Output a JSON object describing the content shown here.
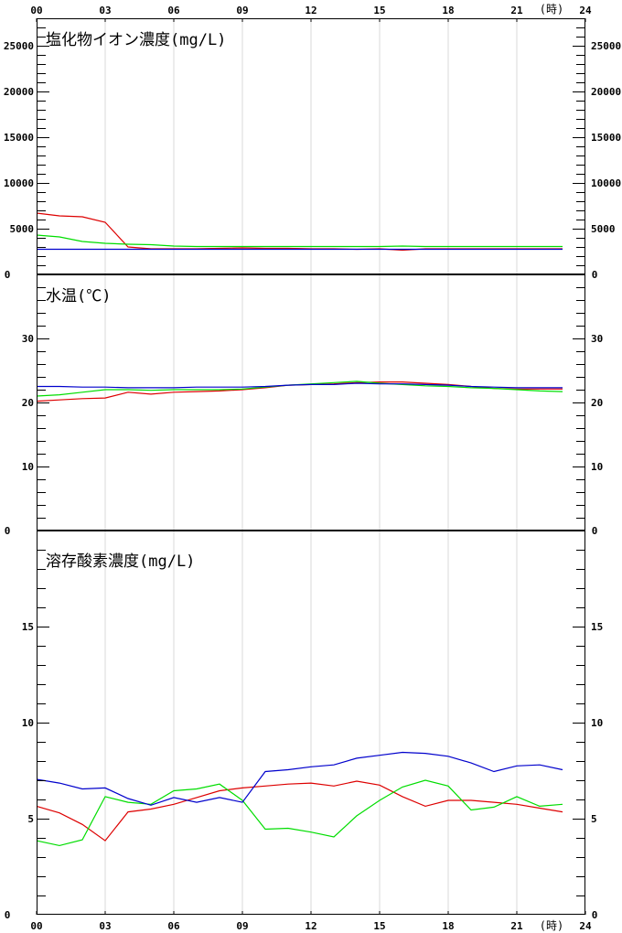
{
  "time_axis": {
    "labels": [
      "00",
      "03",
      "06",
      "09",
      "12",
      "15",
      "18",
      "21",
      "24"
    ],
    "values": [
      0,
      3,
      6,
      9,
      12,
      15,
      18,
      21,
      24
    ],
    "unit": "(時)"
  },
  "chart_data": [
    {
      "type": "line",
      "title": "塩化物イオン濃度(mg/L)",
      "x": [
        0,
        1,
        2,
        3,
        4,
        5,
        6,
        7,
        8,
        9,
        10,
        11,
        12,
        13,
        14,
        15,
        16,
        17,
        18,
        19,
        20,
        21,
        22,
        23
      ],
      "ylim": [
        0,
        28000
      ],
      "yticks": [
        0,
        5000,
        10000,
        15000,
        20000,
        25000
      ],
      "minor_step": 1000,
      "grid": "vertical",
      "series": [
        {
          "color": "#dd0000",
          "values": [
            6700,
            6400,
            6300,
            5700,
            3000,
            2800,
            2800,
            2800,
            2850,
            2900,
            2850,
            2850,
            2800,
            2800,
            2750,
            2800,
            2650,
            2800,
            2800,
            2800,
            2800,
            2800,
            2800,
            2800
          ]
        },
        {
          "color": "#00dd00",
          "values": [
            4300,
            4100,
            3600,
            3400,
            3300,
            3250,
            3100,
            3050,
            3050,
            3050,
            3050,
            3050,
            3050,
            3050,
            3050,
            3050,
            3100,
            3050,
            3050,
            3050,
            3050,
            3050,
            3050,
            3050
          ]
        },
        {
          "color": "#0000cc",
          "values": [
            2750,
            2750,
            2750,
            2750,
            2750,
            2750,
            2750,
            2750,
            2750,
            2750,
            2750,
            2750,
            2750,
            2750,
            2750,
            2750,
            2750,
            2750,
            2750,
            2750,
            2750,
            2750,
            2750,
            2750
          ]
        }
      ]
    },
    {
      "type": "line",
      "title": "水温(℃)",
      "x": [
        0,
        1,
        2,
        3,
        4,
        5,
        6,
        7,
        8,
        9,
        10,
        11,
        12,
        13,
        14,
        15,
        16,
        17,
        18,
        19,
        20,
        21,
        22,
        23
      ],
      "ylim": [
        0,
        40
      ],
      "yticks": [
        0,
        10,
        20,
        30
      ],
      "minor_step": 2,
      "grid": "vertical",
      "series": [
        {
          "color": "#dd0000",
          "values": [
            20.2,
            20.4,
            20.6,
            20.7,
            21.6,
            21.3,
            21.6,
            21.7,
            21.8,
            22.0,
            22.3,
            22.7,
            22.8,
            22.9,
            23.1,
            23.2,
            23.2,
            23.0,
            22.8,
            22.5,
            22.2,
            22.1,
            22.1,
            22.1
          ]
        },
        {
          "color": "#00dd00",
          "values": [
            21.0,
            21.2,
            21.6,
            22.0,
            22.0,
            21.9,
            22.0,
            22.0,
            22.0,
            22.1,
            22.4,
            22.7,
            22.9,
            23.1,
            23.3,
            23.0,
            22.8,
            22.6,
            22.5,
            22.3,
            22.2,
            22.0,
            21.8,
            21.7
          ]
        },
        {
          "color": "#0000cc",
          "values": [
            22.5,
            22.5,
            22.4,
            22.4,
            22.3,
            22.3,
            22.3,
            22.4,
            22.4,
            22.4,
            22.5,
            22.7,
            22.8,
            22.8,
            23.0,
            22.9,
            22.9,
            22.8,
            22.7,
            22.5,
            22.4,
            22.3,
            22.3,
            22.3
          ]
        }
      ]
    },
    {
      "type": "line",
      "title": "溶存酸素濃度(mg/L)",
      "x": [
        0,
        1,
        2,
        3,
        4,
        5,
        6,
        7,
        8,
        9,
        10,
        11,
        12,
        13,
        14,
        15,
        16,
        17,
        18,
        19,
        20,
        21,
        22,
        23
      ],
      "ylim": [
        0,
        20
      ],
      "yticks": [
        0,
        5,
        10,
        15
      ],
      "minor_step": 1,
      "grid": "vertical",
      "series": [
        {
          "color": "#dd0000",
          "values": [
            5.65,
            5.3,
            4.7,
            3.85,
            5.35,
            5.5,
            5.75,
            6.1,
            6.45,
            6.6,
            6.7,
            6.8,
            6.85,
            6.7,
            6.95,
            6.75,
            6.15,
            5.65,
            5.95,
            5.95,
            5.85,
            5.75,
            5.55,
            5.35
          ]
        },
        {
          "color": "#00dd00",
          "values": [
            3.85,
            3.6,
            3.9,
            6.15,
            5.85,
            5.75,
            6.45,
            6.55,
            6.8,
            5.95,
            4.45,
            4.5,
            4.3,
            4.05,
            5.15,
            5.95,
            6.65,
            7.0,
            6.7,
            5.45,
            5.6,
            6.15,
            5.65,
            5.75
          ]
        },
        {
          "color": "#0000cc",
          "values": [
            7.05,
            6.85,
            6.55,
            6.6,
            6.05,
            5.7,
            6.1,
            5.85,
            6.1,
            5.85,
            7.45,
            7.55,
            7.7,
            7.8,
            8.15,
            8.3,
            8.45,
            8.4,
            8.25,
            7.9,
            7.45,
            7.75,
            7.8,
            7.55
          ]
        }
      ]
    }
  ]
}
